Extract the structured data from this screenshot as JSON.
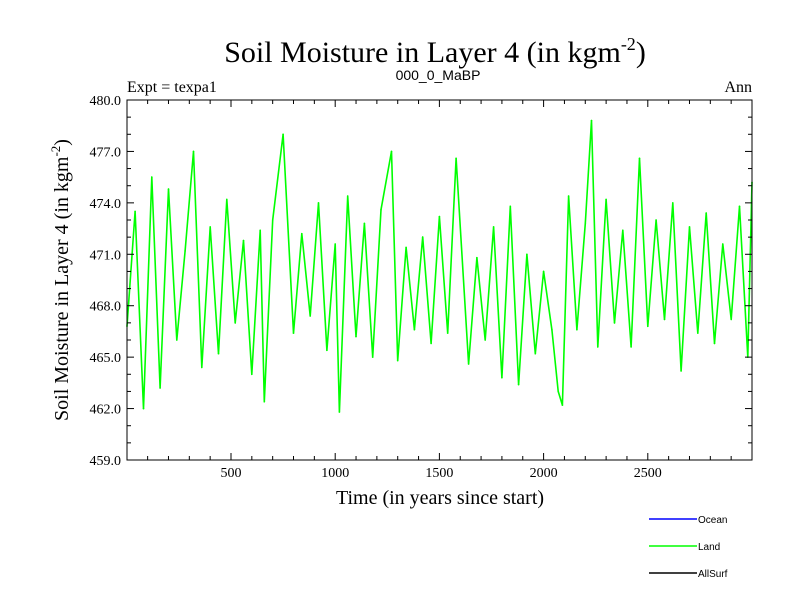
{
  "chart_data": {
    "type": "line",
    "title": "Soil Moisture in Layer 4 (in kgm",
    "title_sup": "-2",
    "title_close": ")",
    "subtitle_left": "Expt = texpa1",
    "subtitle_center": "000_0_MaBP",
    "subtitle_right": "Ann",
    "xlabel": "Time (in years since start)",
    "ylabel": "Soil Moisture in Layer 4 (in kgm",
    "ylabel_sup": "-2",
    "ylabel_close": ")",
    "xlim": [
      1,
      3000
    ],
    "ylim": [
      459.0,
      480.0
    ],
    "x_ticks": [
      500,
      1000,
      1500,
      2000,
      2500
    ],
    "x_tick_labels": [
      "500",
      "1000",
      "1500",
      "2000",
      "2500"
    ],
    "y_ticks": [
      459.0,
      462.0,
      465.0,
      468.0,
      471.0,
      474.0,
      477.0,
      480.0
    ],
    "y_tick_labels": [
      "459.0",
      "462.0",
      "465.0",
      "468.0",
      "471.0",
      "474.0",
      "477.0",
      "480.0"
    ],
    "grid": false,
    "legend_position": "bottom-right, outside plot",
    "series": [
      {
        "name": "Land",
        "color": "#00ff00",
        "x": [
          1,
          40,
          80,
          120,
          160,
          200,
          240,
          280,
          320,
          360,
          400,
          440,
          480,
          520,
          560,
          600,
          640,
          660,
          700,
          750,
          800,
          840,
          880,
          920,
          960,
          1000,
          1020,
          1060,
          1100,
          1140,
          1180,
          1220,
          1270,
          1300,
          1340,
          1380,
          1420,
          1460,
          1500,
          1540,
          1580,
          1640,
          1680,
          1720,
          1760,
          1800,
          1840,
          1880,
          1920,
          1960,
          2000,
          2040,
          2070,
          2090,
          2120,
          2160,
          2200,
          2230,
          2260,
          2300,
          2340,
          2380,
          2420,
          2460,
          2500,
          2540,
          2580,
          2620,
          2660,
          2700,
          2740,
          2780,
          2820,
          2860,
          2900,
          2940,
          2980,
          3000
        ],
        "y": [
          466.8,
          473.5,
          462.0,
          475.5,
          463.2,
          474.8,
          466.0,
          471.2,
          477.0,
          464.4,
          472.6,
          465.2,
          474.2,
          467.0,
          471.8,
          464.0,
          472.4,
          462.4,
          473.0,
          478.0,
          466.4,
          472.2,
          467.4,
          474.0,
          465.4,
          471.6,
          461.8,
          474.4,
          466.2,
          472.8,
          465.0,
          473.6,
          477.0,
          464.8,
          471.4,
          466.6,
          472.0,
          465.8,
          473.2,
          466.4,
          476.6,
          464.6,
          470.8,
          466.0,
          472.6,
          463.8,
          473.8,
          463.4,
          471.0,
          465.2,
          470.0,
          466.6,
          463.0,
          462.2,
          474.4,
          466.6,
          472.8,
          478.8,
          465.6,
          474.2,
          467.0,
          472.4,
          465.6,
          476.6,
          466.8,
          473.0,
          467.2,
          474.0,
          464.2,
          472.6,
          466.4,
          473.4,
          465.8,
          471.6,
          467.2,
          473.8,
          465.0,
          475.2
        ]
      }
    ],
    "legend": [
      {
        "label": "Ocean",
        "color": "#0000ff"
      },
      {
        "label": "Land",
        "color": "#00ff00"
      },
      {
        "label": "AllSurf",
        "color": "#000000"
      }
    ]
  }
}
